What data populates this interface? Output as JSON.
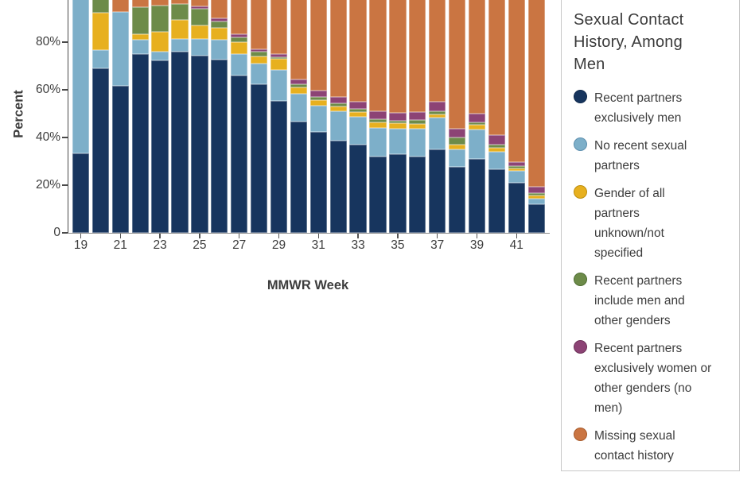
{
  "legend": {
    "title": "Sexual Contact\nHistory, Among\nMen"
  },
  "chart_data": {
    "type": "bar",
    "stacked": true,
    "orientation": "vertical",
    "title": "Sexual Contact History, Among Men",
    "xlabel": "MMWR Week",
    "ylabel": "Percent",
    "units": "percent",
    "ylim": [
      0,
      100
    ],
    "note_visible_range": "top of plot is cropped in view above ~98%",
    "x": [
      19,
      20,
      21,
      22,
      23,
      24,
      25,
      26,
      27,
      28,
      29,
      30,
      31,
      32,
      33,
      34,
      35,
      36,
      37,
      38,
      39,
      40,
      41,
      42
    ],
    "x_axis": {
      "tick_weeks": [
        19,
        21,
        23,
        25,
        27,
        29,
        31,
        33,
        35,
        37,
        39,
        41
      ],
      "tick_labels": [
        "19",
        "21",
        "23",
        "25",
        "27",
        "29",
        "31",
        "33",
        "35",
        "37",
        "39",
        "41"
      ]
    },
    "y_axis": {
      "tick_values": [
        0,
        20,
        40,
        60,
        80
      ],
      "tick_labels": [
        "0",
        "20%",
        "40%",
        "60%",
        "80%"
      ]
    },
    "series": [
      {
        "name": "Recent partners exclusively men",
        "legend_label": "Recent partners\nexclusively men",
        "color": "#17355e",
        "border_color": "#102a4d",
        "values": [
          33.4,
          69.0,
          61.6,
          74.9,
          72.3,
          76.0,
          74.3,
          72.7,
          66.0,
          62.3,
          55.2,
          46.6,
          42.4,
          38.6,
          37.1,
          32.1,
          32.9,
          32.1,
          34.9,
          27.7,
          31.0,
          26.8,
          21.0,
          11.9
        ]
      },
      {
        "name": "No recent sexual partners",
        "legend_label": "No recent sexual\npartners",
        "color": "#7dafc9",
        "border_color": "#5d8fae",
        "values": [
          66.6,
          7.8,
          31.1,
          6.1,
          3.7,
          5.2,
          7.2,
          8.3,
          8.9,
          8.7,
          13.0,
          11.7,
          10.8,
          12.4,
          11.5,
          12.0,
          10.7,
          11.5,
          13.3,
          7.2,
          12.4,
          7.3,
          5.0,
          2.4
        ]
      },
      {
        "name": "Gender of all partners unknown/not specified",
        "legend_label": "Gender of all\npartners\nunknown/not\nspecified",
        "color": "#e7b01f",
        "border_color": "#bd8e0e",
        "values": [
          0,
          15.5,
          0,
          2.2,
          8.3,
          8.1,
          5.5,
          5.0,
          5.0,
          3.1,
          4.8,
          2.8,
          2.4,
          2.0,
          2.2,
          2.2,
          2.4,
          2.0,
          1.4,
          2.2,
          1.8,
          1.6,
          1.1,
          1.3
        ]
      },
      {
        "name": "Recent partners include men and other genders",
        "legend_label": "Recent partners\ninclude men and\nother genders",
        "color": "#6d8b49",
        "border_color": "#4f6e33",
        "values": [
          0,
          7.7,
          0,
          11.4,
          11.1,
          6.7,
          7.0,
          2.8,
          2.2,
          1.9,
          0.8,
          1.3,
          1.4,
          1.3,
          1.3,
          1.3,
          1.1,
          1.7,
          1.3,
          2.8,
          1.1,
          1.4,
          0.8,
          1.1
        ]
      },
      {
        "name": "Recent partners exclusively women or other genders (no men)",
        "legend_label": "Recent partners\nexclusively women or\nother genders (no\nmen)",
        "color": "#8c4375",
        "border_color": "#6d3259",
        "values": [
          0,
          0,
          0,
          0,
          0,
          0,
          1.1,
          1.1,
          1.1,
          1.1,
          1.1,
          2.0,
          2.8,
          2.8,
          2.8,
          3.3,
          3.3,
          3.3,
          4.1,
          3.9,
          3.8,
          3.9,
          1.8,
          2.6
        ]
      },
      {
        "name": "Missing sexual contact history",
        "legend_label": "Missing sexual\ncontact history",
        "color": "#ca7542",
        "border_color": "#a75a2b",
        "values": [
          0,
          0,
          7.3,
          5.4,
          4.6,
          4.0,
          4.9,
          10.1,
          16.8,
          22.9,
          25.1,
          35.6,
          40.2,
          42.9,
          45.1,
          49.1,
          49.6,
          49.4,
          45.0,
          56.2,
          49.9,
          59.0,
          70.3,
          80.7
        ]
      }
    ]
  }
}
